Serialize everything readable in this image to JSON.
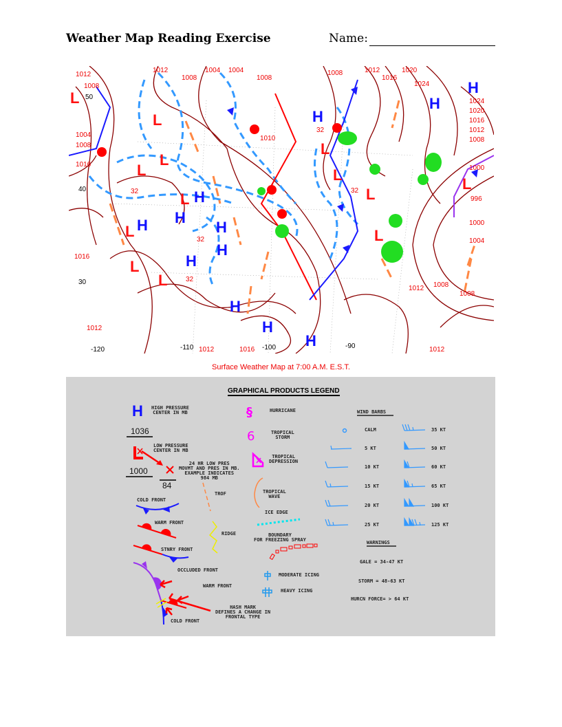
{
  "header": {
    "title": "Weather Map Reading Exercise",
    "name_label": "Name:"
  },
  "map": {
    "caption": "Surface Weather Map at 7:00 A.M. E.S.T.",
    "colors": {
      "high": "#1010ff",
      "low": "#ff1010",
      "isobar": "#8b0000",
      "cold_front": "#1a1aff",
      "warm_front": "#ff0000",
      "trough": "#ff8844",
      "dashed_isotherm": "#3399ff",
      "precip": "#22dd22",
      "occluded": "#9933ee"
    },
    "highs": [
      "H",
      "H",
      "H",
      "H",
      "H",
      "H",
      "H",
      "H",
      "H",
      "H",
      "H",
      "H"
    ],
    "lows": [
      "L",
      "L",
      "L",
      "L",
      "L",
      "L",
      "L",
      "L",
      "L",
      "L",
      "L",
      "L",
      "L"
    ],
    "isobar_labels": [
      "1012",
      "1012",
      "1008",
      "1004",
      "1004",
      "1008",
      "1008",
      "1012",
      "1016",
      "1020",
      "1024",
      "1024",
      "1020",
      "1016",
      "1012",
      "1008",
      "1000",
      "1000",
      "1004",
      "1008",
      "1008",
      "1012",
      "1016",
      "1012",
      "1012",
      "1016",
      "1012",
      "1008",
      "1004",
      "1008",
      "1016",
      "1010",
      "996",
      "32",
      "32",
      "32",
      "32",
      "32"
    ],
    "grid_labels": [
      "50",
      "40",
      "30",
      "-120",
      "-110",
      "-100",
      "-90"
    ]
  },
  "legend": {
    "title": "GRAPHICAL PRODUCTS LEGEND",
    "high": {
      "symbol": "H",
      "label": "HIGH PRESSURE\nCENTER IN MB",
      "value": "1036"
    },
    "low": {
      "symbol": "L",
      "label": "LOW PRESSURE\nCENTER IN MB",
      "value": "1000"
    },
    "movement": {
      "label": "24 HR LOW PRES\nMOVMT AND PRES IN MB.\nEXAMPLE INDICATES\n984 MB",
      "value": "84"
    },
    "trof": "TROF",
    "cold_front": "COLD FRONT",
    "warm_front": "WARM FRONT",
    "ridge": "RIDGE",
    "stnry_front": "STNRY FRONT",
    "hurricane": "HURRICANE",
    "tropical_storm": "TROPICAL\nSTORM",
    "tropical_depression": "TROPICAL\nDEPRESSION",
    "tropical_wave": "TROPICAL\nWAVE",
    "ice_edge": "ICE EDGE",
    "freezing_spray": "BOUNDARY\nFOR FREEZING SPRAY",
    "moderate_icing": "MODERATE ICING",
    "heavy_icing": "HEAVY ICING",
    "occluded_diagram": {
      "occluded": "OCCLUDED FRONT",
      "warm": "WARM FRONT",
      "hash": "HASH MARK\nDEFINES A CHANGE IN\nFRONTAL TYPE",
      "cold": "COLD FRONT"
    },
    "wind_barbs": {
      "title": "WIND BARBS",
      "left": [
        "CALM",
        "5 KT",
        "10 KT",
        "15 KT",
        "20 KT",
        "25 KT"
      ],
      "right": [
        "35 KT",
        "50 KT",
        "60 KT",
        "65 KT",
        "100 KT",
        "125 KT"
      ]
    },
    "warnings": {
      "title": "WARNINGS",
      "items": [
        "GALE = 34-47 KT",
        "STORM = 48-63 KT",
        "HURCN FORCE= > 64 KT"
      ]
    }
  }
}
